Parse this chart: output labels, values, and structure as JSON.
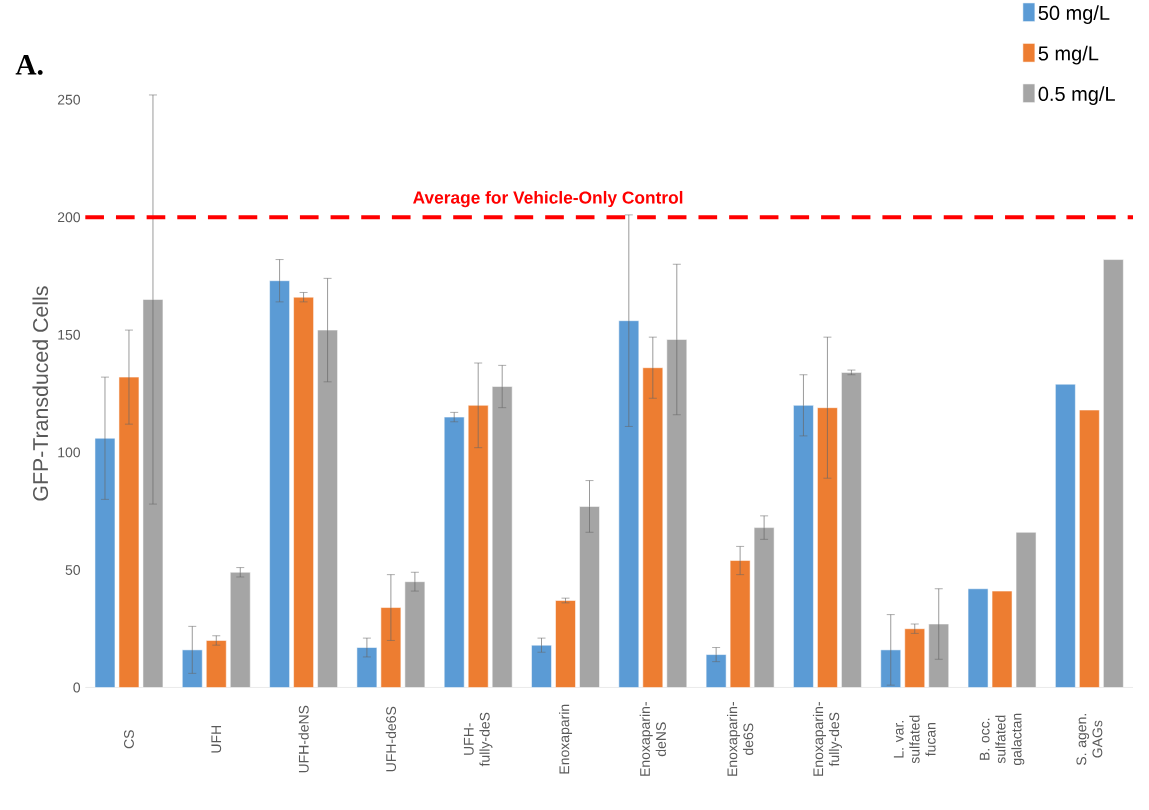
{
  "chart_data": {
    "type": "bar",
    "ylabel": "GFP-Transduced Cells",
    "annotations": [
      "A."
    ],
    "categories": [
      "CS",
      "UFH",
      "UFH-deNS",
      "UFH-de6S",
      "UFH-fully-deS",
      "Enoxaparin",
      "Enoxaparin-deNS",
      "Enoxaparin-de6S",
      "Enoxaparin-fully-deS",
      "L. var. sulfated fucan",
      "B. occ. sulfated galactan",
      "S. agen. GAGs"
    ],
    "series": [
      {
        "name": "50 mg/L",
        "color": "#5b9bd5",
        "values": [
          106,
          16,
          173,
          17,
          115,
          18,
          156,
          14,
          120,
          16,
          42,
          129
        ],
        "errors": [
          26,
          10,
          9,
          4,
          2,
          3,
          45,
          3,
          13,
          15,
          null,
          null
        ]
      },
      {
        "name": "5 mg/L",
        "color": "#ed7d31",
        "values": [
          132,
          20,
          166,
          34,
          120,
          37,
          136,
          54,
          119,
          25,
          41,
          118
        ],
        "errors": [
          20,
          2,
          2,
          14,
          18,
          1,
          13,
          6,
          30,
          2,
          null,
          null
        ]
      },
      {
        "name": "0.5 mg/L",
        "color": "#a5a5a5",
        "values": [
          165,
          49,
          152,
          45,
          128,
          77,
          148,
          68,
          134,
          27,
          66,
          182
        ],
        "errors": [
          87,
          2,
          22,
          4,
          9,
          11,
          32,
          5,
          1,
          15,
          null,
          null
        ]
      }
    ],
    "ylim": [
      0,
      250
    ],
    "yticks": [
      0,
      50,
      100,
      150,
      200,
      250
    ],
    "ref_lines": [
      {
        "axis": "y",
        "value": 200,
        "label": "Average for Vehicle-Only Control",
        "color": "#ff0000",
        "line_style": "dashed"
      }
    ],
    "legend": "top right"
  }
}
